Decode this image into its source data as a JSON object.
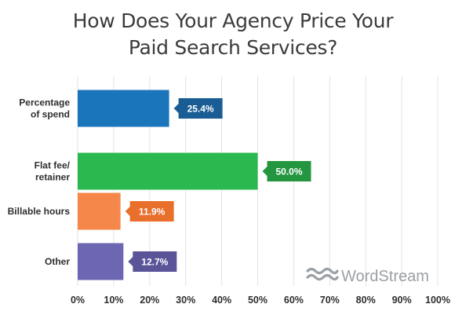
{
  "chart_data": {
    "type": "bar",
    "orientation": "horizontal",
    "title_lines": [
      "How Does Your Agency Price Your",
      "Paid Search Services?"
    ],
    "categories": [
      [
        "Percentage",
        "of spend"
      ],
      [
        "Flat fee/",
        "retainer"
      ],
      [
        "Billable hours"
      ],
      [
        "Other"
      ]
    ],
    "values": [
      25.4,
      50.0,
      11.9,
      12.7
    ],
    "value_labels": [
      "25.4%",
      "50.0%",
      "11.9%",
      "12.7%"
    ],
    "bar_colors": [
      "#1b75bb",
      "#2bb84f",
      "#f6874b",
      "#6c66b3"
    ],
    "label_colors": [
      "#1a5d94",
      "#23963f",
      "#e96f2c",
      "#5a5499"
    ],
    "xlim": [
      0,
      100
    ],
    "xticks": [
      "0%",
      "10%",
      "20%",
      "30%",
      "40%",
      "50%",
      "60%",
      "70%",
      "80%",
      "90%",
      "100%"
    ],
    "grid": true
  },
  "brand": {
    "name": "WordStream",
    "icon": "wave-logo-icon",
    "color": "#9aa0a6"
  }
}
